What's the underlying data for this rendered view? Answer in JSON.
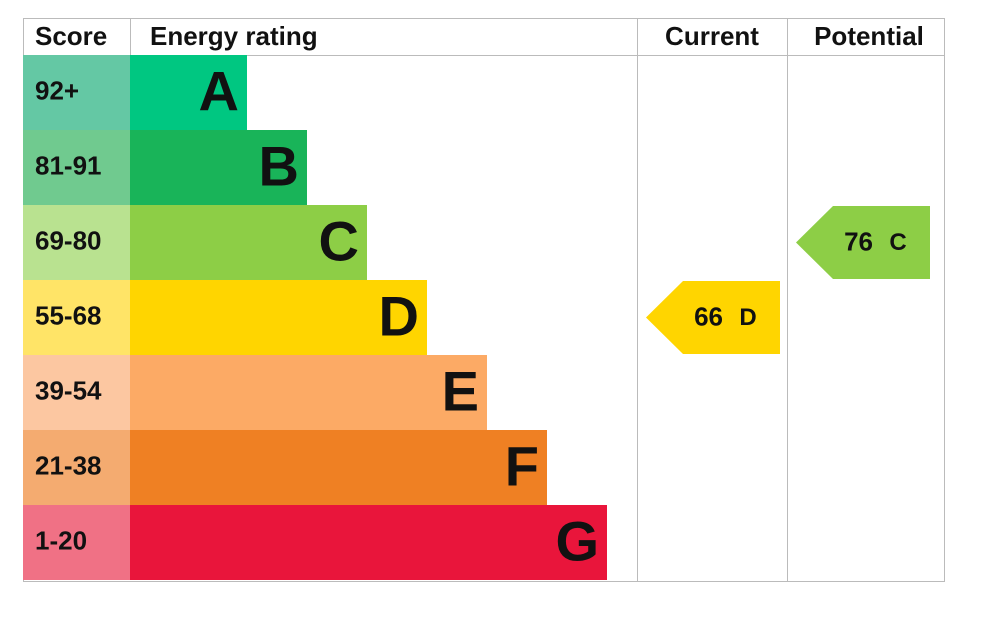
{
  "headers": {
    "score": "Score",
    "rating": "Energy rating",
    "current": "Current",
    "potential": "Potential"
  },
  "bands": [
    {
      "score": "92+",
      "letter": "A",
      "color": "#00c781",
      "light": "#64c8a4"
    },
    {
      "score": "81-91",
      "letter": "B",
      "color": "#19b459",
      "light": "#70ca8f"
    },
    {
      "score": "69-80",
      "letter": "C",
      "color": "#8dce46",
      "light": "#b9e290"
    },
    {
      "score": "55-68",
      "letter": "D",
      "color": "#ffd500",
      "light": "#ffe467"
    },
    {
      "score": "39-54",
      "letter": "E",
      "color": "#fcaa65",
      "light": "#fcc7a1"
    },
    {
      "score": "21-38",
      "letter": "F",
      "color": "#ef8023",
      "light": "#f4ab70"
    },
    {
      "score": "1-20",
      "letter": "G",
      "color": "#e9153b",
      "light": "#f07185"
    }
  ],
  "current": {
    "score": 66,
    "rating": "D"
  },
  "potential": {
    "score": 76,
    "rating": "C"
  }
}
